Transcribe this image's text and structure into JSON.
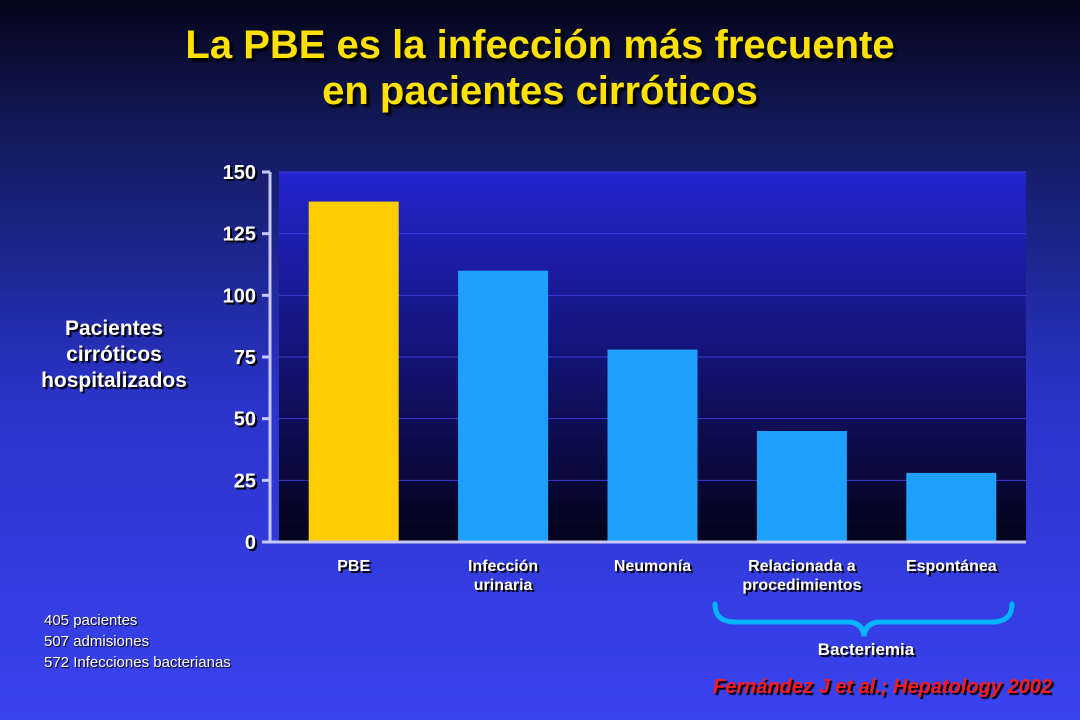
{
  "slide": {
    "title_line1": "La PBE es la infección más frecuente",
    "title_line2": "en pacientes cirróticos",
    "notes": [
      "405 pacientes",
      "507 admisiones",
      "572 Infecciones bacterianas"
    ],
    "bracket_label": "Bacteriemia",
    "citation": "Fernández J et al.;  Hepatology 2002"
  },
  "chart_data": {
    "type": "bar",
    "categories": [
      [
        "PBE"
      ],
      [
        "Infección",
        "urinaria"
      ],
      [
        "Neumonía"
      ],
      [
        "Relacionada a",
        "procedimientos"
      ],
      [
        "Espontánea"
      ]
    ],
    "values": [
      138,
      110,
      78,
      45,
      28
    ],
    "ylabel": [
      "Pacientes",
      "cirróticos",
      "hospitalizados"
    ],
    "ylim": [
      0,
      150
    ],
    "yticks": [
      0,
      25,
      50,
      75,
      100,
      125,
      150
    ],
    "grid": true,
    "colors": {
      "highlight": "#ffcc00",
      "bar": "#1fa0ff",
      "plot_top": "#2424d0",
      "plot_bottom": "#03031a",
      "gridline": "#3a3ad8"
    },
    "highlight_index": 0
  }
}
